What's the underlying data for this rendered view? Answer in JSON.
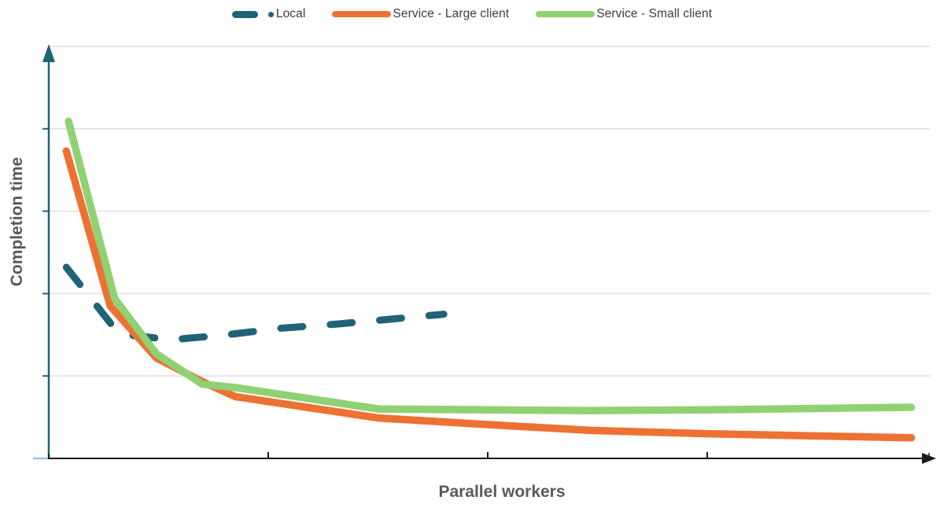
{
  "colors": {
    "local": "#1F6377",
    "large_client": "#ED7132",
    "small_client": "#8FD173",
    "x_axis": "#1A1A1A",
    "y_axis": "#1F6377",
    "gridline": "#E3E3E3",
    "origin_tick": "#9DC3E6",
    "axis_title_text": "#595959",
    "legend_text": "#3C3C3C"
  },
  "chart_data": {
    "type": "line",
    "title": "",
    "xlabel": "Parallel workers",
    "ylabel": "Completion time",
    "x_unit": "axis-tick intervals (ticks unlabeled)",
    "y_unit": "gridline intervals (ticks unlabeled)",
    "xlim": [
      0,
      4.05
    ],
    "ylim": [
      0,
      5
    ],
    "grid": "horizontal gridlines only",
    "x_ticks_at": [
      1,
      2,
      3
    ],
    "legend_position": "top-center",
    "axes_have_arrowheads": true,
    "series": [
      {
        "name": "Local",
        "style": "dashed",
        "color": "#1F6377",
        "x": [
          0.08,
          0.32,
          0.56,
          0.81,
          1.06,
          1.31,
          1.56,
          1.8
        ],
        "y": [
          2.32,
          1.51,
          1.44,
          1.5,
          1.58,
          1.63,
          1.69,
          1.75
        ]
      },
      {
        "name": "Service - Large client",
        "style": "solid",
        "color": "#ED7132",
        "x": [
          0.08,
          0.28,
          0.49,
          0.7,
          0.85,
          1.5,
          2.0,
          2.47,
          3.0,
          3.93
        ],
        "y": [
          3.73,
          1.85,
          1.22,
          0.93,
          0.75,
          0.49,
          0.41,
          0.34,
          0.3,
          0.25
        ]
      },
      {
        "name": "Service - Small client",
        "style": "solid",
        "color": "#8FD173",
        "x": [
          0.09,
          0.3,
          0.49,
          0.7,
          0.85,
          1.5,
          2.0,
          2.47,
          3.0,
          3.93
        ],
        "y": [
          4.09,
          1.94,
          1.27,
          0.9,
          0.86,
          0.6,
          0.59,
          0.58,
          0.59,
          0.62
        ]
      }
    ]
  }
}
